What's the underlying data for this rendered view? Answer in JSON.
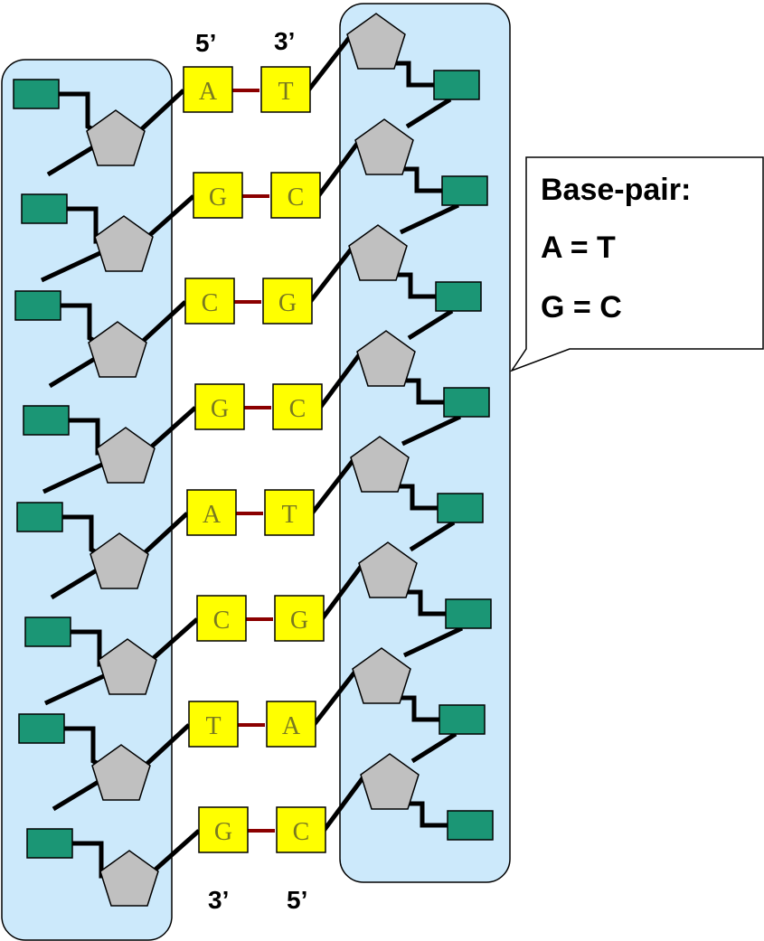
{
  "labels": {
    "top_left_end": "5’",
    "top_right_end": "3’",
    "bottom_left_end": "3’",
    "bottom_right_end": "5’"
  },
  "callout": {
    "title": "Base-pair:",
    "rule1": "A = T",
    "rule2": "G = C"
  },
  "pairs": [
    {
      "left": "A",
      "right": "T"
    },
    {
      "left": "G",
      "right": "C"
    },
    {
      "left": "C",
      "right": "G"
    },
    {
      "left": "G",
      "right": "C"
    },
    {
      "left": "A",
      "right": "T"
    },
    {
      "left": "C",
      "right": "G"
    },
    {
      "left": "T",
      "right": "A"
    },
    {
      "left": "G",
      "right": "C"
    }
  ],
  "colors": {
    "backbone_panel": "#cce9fb",
    "phosphate": "#1b9675",
    "sugar": "#c0c0c0",
    "base": "#ffff00",
    "hydrogen_bond": "#8b0000"
  }
}
